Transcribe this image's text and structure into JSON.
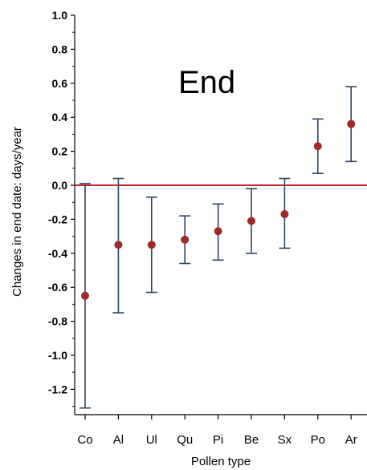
{
  "chart_data": {
    "type": "scatter",
    "subtype": "dot-with-error-bars",
    "annotation": "End",
    "xlabel": "Pollen type",
    "ylabel": "Changes in end date: days/year",
    "categories": [
      "Co",
      "Al",
      "Ul",
      "Qu",
      "Pi",
      "Be",
      "Sx",
      "Po",
      "Ar"
    ],
    "series": [
      {
        "values": [
          -0.65,
          -0.35,
          -0.35,
          -0.32,
          -0.27,
          -0.21,
          -0.17,
          0.23,
          0.36
        ],
        "lower": [
          -1.31,
          -0.75,
          -0.63,
          -0.46,
          -0.44,
          -0.4,
          -0.37,
          0.07,
          0.14
        ],
        "upper": [
          0.01,
          0.04,
          -0.07,
          -0.18,
          -0.11,
          -0.02,
          0.04,
          0.39,
          0.58
        ],
        "point_color": "#9B2A2A",
        "bar_color": "#2F4660"
      }
    ],
    "reference_line": {
      "y": 0.0,
      "color": "#C0202E"
    },
    "ylim": [
      -1.3,
      1.0
    ],
    "yticks": [
      "1.0",
      "0.8",
      "0.6",
      "0.4",
      "0.2",
      "0.0",
      "-0.2",
      "-0.4",
      "-0.6",
      "-0.8",
      "-1.0",
      "-1.2"
    ],
    "ytick_values": [
      1.0,
      0.8,
      0.6,
      0.4,
      0.2,
      0.0,
      -0.2,
      -0.4,
      -0.6,
      -0.8,
      -1.0,
      -1.2
    ],
    "grid": false,
    "legend": "none"
  }
}
